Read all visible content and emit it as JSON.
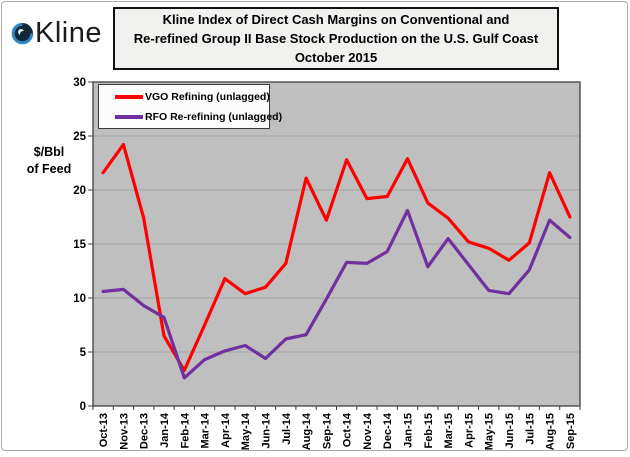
{
  "brand": {
    "name": "Kline"
  },
  "header": {
    "title_lines": [
      "Kline Index of Direct Cash Margins on Conventional and",
      "Re-refined Group II Base Stock Production on the U.S. Gulf Coast",
      "October 2015"
    ]
  },
  "y_axis_unit": {
    "line1": "$/Bbl",
    "line2": "of Feed"
  },
  "chart_data": {
    "type": "line",
    "title": "Kline Index of Direct Cash Margins, U.S. Gulf Coast, October 2015",
    "ylabel": "$/Bbl of Feed",
    "xlabel": "",
    "ylim": [
      0,
      30
    ],
    "ytick_step": 5,
    "grid": true,
    "legend_position": "top-left",
    "plot_bg_color": "#bfbfbf",
    "grid_color": "#a4a4a4",
    "axis_color": "#3f3f3f",
    "x": [
      "Oct-13",
      "Nov-13",
      "Dec-13",
      "Jan-14",
      "Feb-14",
      "Mar-14",
      "Apr-14",
      "May-14",
      "Jun-14",
      "Jul-14",
      "Aug-14",
      "Sep-14",
      "Oct-14",
      "Nov-14",
      "Dec-14",
      "Jan-15",
      "Feb-15",
      "Mar-15",
      "Apr-15",
      "May-15",
      "Jun-15",
      "Jul-15",
      "Aug-15",
      "Sep-15"
    ],
    "series": [
      {
        "name": "VGO Refining (unlagged)",
        "color": "#ff0000",
        "values": [
          21.6,
          24.2,
          17.4,
          6.5,
          3.3,
          7.5,
          11.8,
          10.4,
          11.0,
          13.2,
          21.1,
          17.2,
          22.8,
          19.2,
          19.4,
          22.9,
          18.8,
          17.4,
          15.2,
          14.6,
          13.5,
          15.1,
          21.6,
          17.5
        ]
      },
      {
        "name": "RFO Re-refining (unlagged)",
        "color": "#7030a0",
        "values": [
          10.6,
          10.8,
          9.3,
          8.2,
          2.6,
          4.3,
          5.1,
          5.6,
          4.4,
          6.2,
          6.6,
          9.9,
          13.3,
          13.2,
          14.3,
          18.1,
          12.9,
          15.5,
          13.1,
          10.7,
          10.4,
          12.6,
          17.2,
          15.6
        ]
      }
    ]
  }
}
